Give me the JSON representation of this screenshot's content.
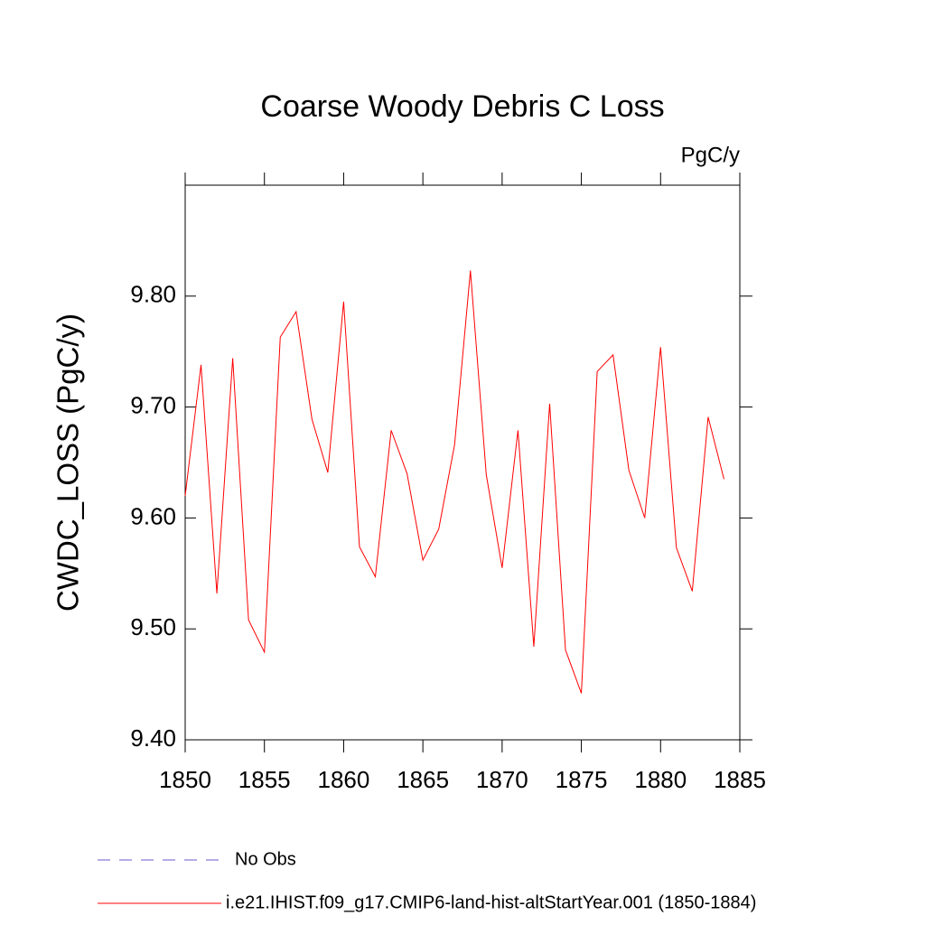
{
  "chart_data": {
    "type": "line",
    "title": "Coarse Woody Debris C Loss",
    "units": "PgC/y",
    "y_label": "CWDC_LOSS  (PgC/y)",
    "x": [
      1850,
      1851,
      1852,
      1853,
      1854,
      1855,
      1856,
      1857,
      1858,
      1859,
      1860,
      1861,
      1862,
      1863,
      1864,
      1865,
      1866,
      1867,
      1868,
      1869,
      1870,
      1871,
      1872,
      1873,
      1874,
      1875,
      1876,
      1877,
      1878,
      1879,
      1880,
      1881,
      1882,
      1883,
      1884
    ],
    "series": [
      {
        "name": "No Obs",
        "color": "#6a5acd",
        "dashed": true,
        "values": [
          null,
          null,
          null,
          null,
          null,
          null,
          null,
          null,
          null,
          null,
          null,
          null,
          null,
          null,
          null,
          null,
          null,
          null,
          null,
          null,
          null,
          null,
          null,
          null,
          null,
          null,
          null,
          null,
          null,
          null,
          null,
          null,
          null,
          null,
          null
        ]
      },
      {
        "name": "i.e21.IHIST.f09_g17.CMIP6-land-hist-altStartYear.001 (1850-1884)",
        "color": "#ff0000",
        "dashed": false,
        "values": [
          9.62,
          9.738,
          9.532,
          9.744,
          9.508,
          9.479,
          9.763,
          9.786,
          9.689,
          9.641,
          9.795,
          9.574,
          9.547,
          9.679,
          9.64,
          9.562,
          9.59,
          9.666,
          9.823,
          9.639,
          9.555,
          9.679,
          9.484,
          9.703,
          9.481,
          9.442,
          9.732,
          9.747,
          9.643,
          9.6,
          9.754,
          9.573,
          9.534,
          9.691,
          9.635
        ]
      }
    ],
    "xlim": [
      1850,
      1885
    ],
    "xticks": [
      1850,
      1855,
      1860,
      1865,
      1870,
      1875,
      1880,
      1885
    ],
    "ylim": [
      9.4,
      9.9
    ],
    "yticks": [
      {
        "value": 9.4,
        "label": "9.40"
      },
      {
        "value": 9.5,
        "label": "9.50"
      },
      {
        "value": 9.6,
        "label": "9.60"
      },
      {
        "value": 9.7,
        "label": "9.70"
      },
      {
        "value": 9.8,
        "label": "9.80"
      }
    ],
    "grid": false
  }
}
